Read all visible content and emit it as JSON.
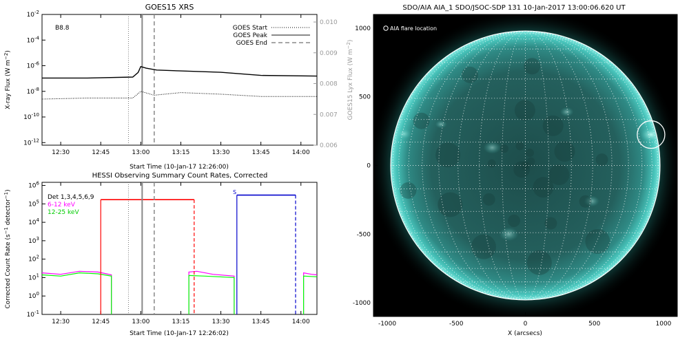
{
  "chart_data": [
    {
      "type": "line",
      "title": "GOES15 XRS",
      "xlabel": "Start Time (10-Jan-17 12:26:00)",
      "ylabel": "X-ray Flux (W m^-2)",
      "y2label": "GOES15 Lyx Flux (W m^-2)",
      "class_label": "B8.8",
      "x_range": [
        "12:23",
        "14:06"
      ],
      "x_ticks": [
        "12:30",
        "12:45",
        "13:00",
        "13:15",
        "13:30",
        "13:45",
        "14:00"
      ],
      "y_scale": "log",
      "y_ticks": [
        "10^-12",
        "10^-10",
        "10^-8",
        "10^-6",
        "10^-4",
        "10^-2"
      ],
      "y2_ticks": [
        "0.006",
        "0.007",
        "0.008",
        "0.009",
        "0.010"
      ],
      "legend": [
        {
          "label": "GOES Start",
          "style": "dotted"
        },
        {
          "label": "GOES Peak",
          "style": "solid"
        },
        {
          "label": "GOES End",
          "style": "dashed"
        }
      ],
      "legend_position": "top-right",
      "markers": {
        "start": "12:59",
        "peak": "13:00",
        "end": "13:04"
      },
      "series": [
        {
          "name": "",
          "style": "solid",
          "color": "#000000",
          "x": [
            "12:23",
            "12:40",
            "12:57",
            "12:59",
            "13:00",
            "13:02",
            "13:06",
            "13:15",
            "13:30",
            "13:45",
            "14:06"
          ],
          "y": [
            "1.1e-7",
            "1.1e-7",
            "1.3e-7",
            "3.0e-7",
            "8.5e-7",
            "6.5e-7",
            "4.5e-7",
            "4.0e-7",
            "3.0e-7",
            "1.8e-7",
            "1.5e-7"
          ]
        },
        {
          "name": "",
          "style": "dotted",
          "color": "#000000",
          "x": [
            "12:23",
            "12:40",
            "12:57",
            "13:00",
            "13:05",
            "13:15",
            "13:30",
            "13:45",
            "14:06"
          ],
          "y": [
            "2.5e-9",
            "3.0e-9",
            "3.0e-9",
            "1.0e-8",
            "5.0e-9",
            "8.0e-9",
            "6.0e-9",
            "4.0e-9",
            "4.0e-9"
          ]
        }
      ]
    },
    {
      "type": "line",
      "title": "HESSI Observing Summary Count Rates, Corrected",
      "xlabel": "Start Time (10-Jan-17 12:26:02)",
      "ylabel": "Corrected Count Rate (s^-1 detector^-1)",
      "x_range": [
        "12:23",
        "14:06"
      ],
      "x_ticks": [
        "12:30",
        "12:45",
        "13:00",
        "13:15",
        "13:30",
        "13:45",
        "14:00"
      ],
      "y_scale": "log",
      "y_range": [
        "1e-1",
        "1e6"
      ],
      "y_ticks": [
        "10^-1",
        "10^0",
        "10^1",
        "10^2",
        "10^3",
        "10^4",
        "10^5",
        "10^6"
      ],
      "det_label": "Det 1,3,4,5,6,9",
      "legend": [
        {
          "label": "6-12 keV",
          "color": "#ff00ff"
        },
        {
          "label": "12-25 keV",
          "color": "#00ff00"
        }
      ],
      "legend_position": "top-left",
      "markers": {
        "start": "12:59",
        "peak": "13:00",
        "end": "13:04"
      },
      "night_intervals": [
        {
          "label": "",
          "color": "#ff0000",
          "start": "12:45",
          "end": "13:20",
          "level": "1.7e5"
        },
        {
          "label": "S",
          "color": "#0000cc",
          "start": "13:36",
          "end": "13:58",
          "level": "3.0e5"
        }
      ],
      "series": [
        {
          "name": "6-12 keV",
          "color": "#ff00ff",
          "segments": [
            {
              "x": [
                "12:23",
                "12:30",
                "12:37",
                "12:44",
                "12:49"
              ],
              "y": [
                "18",
                "15",
                "22",
                "20",
                "14"
              ]
            },
            {
              "x": [
                "13:18",
                "13:21",
                "13:27",
                "13:35"
              ],
              "y": [
                "20",
                "22",
                "15",
                "12"
              ]
            },
            {
              "x": [
                "14:01",
                "14:04",
                "14:06"
              ],
              "y": [
                "18",
                "15",
                "14"
              ]
            }
          ]
        },
        {
          "name": "12-25 keV",
          "color": "#00ff00",
          "segments": [
            {
              "x": [
                "12:23",
                "12:30",
                "12:37",
                "12:44",
                "12:49"
              ],
              "y": [
                "14",
                "12",
                "18",
                "16",
                "12"
              ]
            },
            {
              "x": [
                "13:18",
                "13:24",
                "13:35"
              ],
              "y": [
                "13",
                "12",
                "10"
              ]
            },
            {
              "x": [
                "14:01",
                "14:06"
              ],
              "y": [
                "12",
                "11"
              ]
            }
          ]
        }
      ],
      "gap_floor": "1e-1"
    },
    {
      "type": "heatmap",
      "title": "SDO/AIA AIA_1 SDO/JSOC-SDP 131 10-Jan-2017 13:00:06.620 UT",
      "xlabel": "X (arcsecs)",
      "ylabel": "",
      "annotation": "AIA flare location",
      "x_range": [
        -1100,
        1100
      ],
      "y_range": [
        -1100,
        1100
      ],
      "x_ticks": [
        "-1000",
        "-500",
        "0",
        "500",
        "1000"
      ],
      "y_ticks": [
        "1000",
        "500",
        "0",
        "-500",
        "-1000"
      ],
      "solar_radius_arcsec": 975,
      "flare_location_arcsec": [
        910,
        225
      ],
      "colormap_color": "#3fb8b0",
      "grid": true
    }
  ]
}
